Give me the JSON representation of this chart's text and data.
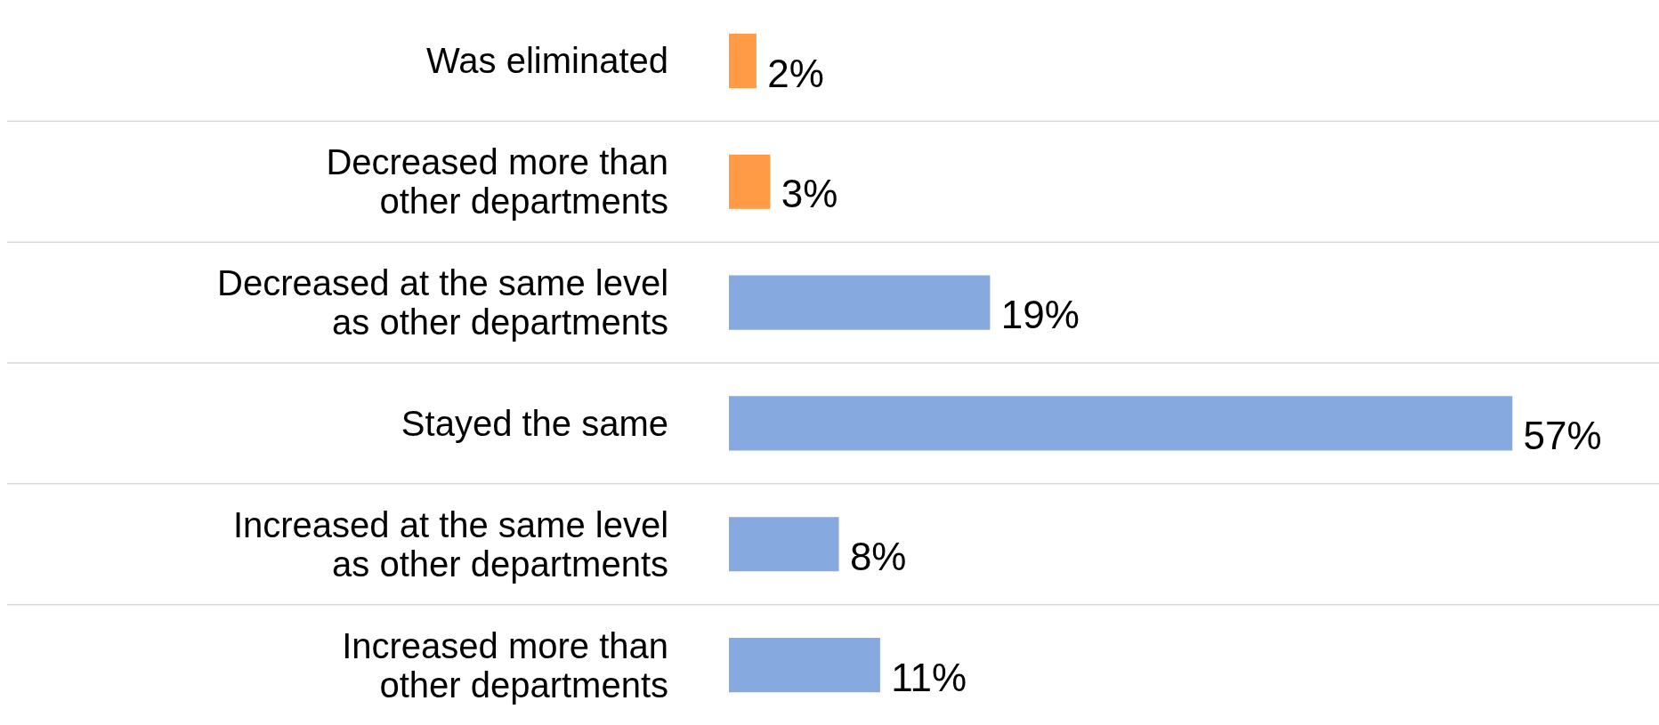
{
  "chart_data": {
    "type": "bar",
    "orientation": "horizontal",
    "grid": "y",
    "categories": [
      "Was eliminated",
      "Decreased more than\nother departments",
      "Decreased at the same level\nas other departments",
      "Stayed the same",
      "Increased at the same level\nas other departments",
      "Increased more than\nother departments"
    ],
    "values": [
      2,
      3,
      19,
      57,
      8,
      11
    ],
    "colors": [
      "#ff9a45",
      "#ff9a45",
      "#86a9e0",
      "#86a9e0",
      "#86a9e0",
      "#86a9e0"
    ],
    "value_labels": [
      "2%",
      "3%",
      "19%",
      "57%",
      "8%",
      "11%"
    ]
  }
}
